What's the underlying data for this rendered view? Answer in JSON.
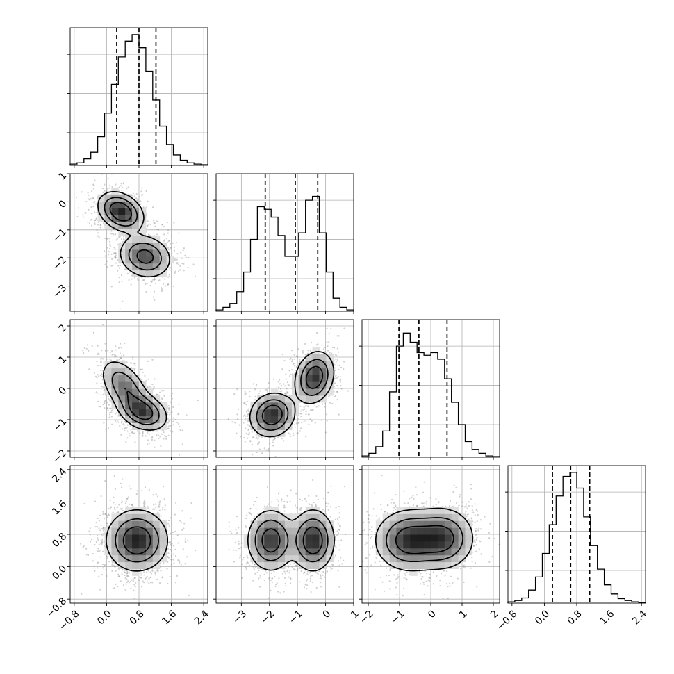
{
  "chart_data": {
    "type": "corner",
    "params": [
      {
        "range": [
          -0.9,
          2.5
        ],
        "ticks": [
          "-0.8",
          "0.0",
          "0.8",
          "1.6",
          "2.4"
        ],
        "quantiles": [
          0.25,
          0.8,
          1.22
        ],
        "hist": [
          0.01,
          0.02,
          0.05,
          0.1,
          0.22,
          0.4,
          0.62,
          0.83,
          0.95,
          1.0,
          0.9,
          0.72,
          0.5,
          0.3,
          0.16,
          0.08,
          0.04,
          0.02,
          0.01,
          0.005
        ]
      },
      {
        "range": [
          -3.9,
          1.0
        ],
        "ticks": [
          "-3",
          "-2",
          "-1",
          "0",
          "1"
        ],
        "quantiles": [
          -2.15,
          -1.08,
          -0.28
        ],
        "hist": [
          0.01,
          0.03,
          0.06,
          0.15,
          0.3,
          0.55,
          0.8,
          0.78,
          0.72,
          0.58,
          0.42,
          0.42,
          0.6,
          0.85,
          0.88,
          0.6,
          0.3,
          0.1,
          0.03,
          0.01
        ]
      },
      {
        "range": [
          -2.2,
          2.2
        ],
        "ticks": [
          "-2",
          "-1",
          "0",
          "1",
          "2"
        ],
        "quantiles": [
          -1.02,
          -0.38,
          0.52
        ],
        "hist": [
          0.01,
          0.03,
          0.08,
          0.2,
          0.5,
          0.85,
          0.95,
          0.88,
          0.8,
          0.78,
          0.8,
          0.75,
          0.6,
          0.42,
          0.25,
          0.12,
          0.06,
          0.03,
          0.01,
          0.005
        ]
      },
      {
        "range": [
          -0.9,
          2.5
        ],
        "ticks": [
          "-0.8",
          "0.0",
          "0.8",
          "1.6",
          "2.4"
        ],
        "quantiles": [
          0.2,
          0.65,
          1.12
        ],
        "hist": [
          0.01,
          0.02,
          0.04,
          0.1,
          0.2,
          0.38,
          0.6,
          0.82,
          0.97,
          1.0,
          0.88,
          0.66,
          0.44,
          0.26,
          0.14,
          0.07,
          0.035,
          0.02,
          0.01,
          0.005
        ]
      }
    ],
    "correlations": [
      {
        "xi": 0,
        "yi": 1,
        "clusters": [
          {
            "mx": 0.35,
            "my": -0.35,
            "sx": 0.28,
            "sy": 0.35,
            "rho": -0.3,
            "w": 0.5
          },
          {
            "mx": 0.95,
            "my": -1.95,
            "sx": 0.32,
            "sy": 0.38,
            "rho": -0.15,
            "w": 0.5
          }
        ]
      },
      {
        "xi": 0,
        "yi": 2,
        "clusters": [
          {
            "mx": 0.45,
            "my": 0.05,
            "sx": 0.3,
            "sy": 0.45,
            "rho": -0.5,
            "w": 0.5
          },
          {
            "mx": 0.9,
            "my": -0.75,
            "sx": 0.3,
            "sy": 0.3,
            "rho": -0.3,
            "w": 0.5
          }
        ]
      },
      {
        "xi": 1,
        "yi": 2,
        "clusters": [
          {
            "mx": -1.9,
            "my": -0.85,
            "sx": 0.4,
            "sy": 0.35,
            "rho": 0.1,
            "w": 0.5
          },
          {
            "mx": -0.4,
            "my": 0.35,
            "sx": 0.35,
            "sy": 0.42,
            "rho": 0.2,
            "w": 0.5
          }
        ]
      },
      {
        "xi": 0,
        "yi": 3,
        "clusters": [
          {
            "mx": 0.75,
            "my": 0.65,
            "sx": 0.38,
            "sy": 0.38,
            "rho": 0.0,
            "w": 1.0
          }
        ]
      },
      {
        "xi": 1,
        "yi": 3,
        "clusters": [
          {
            "mx": -1.95,
            "my": 0.65,
            "sx": 0.42,
            "sy": 0.38,
            "rho": 0.0,
            "w": 0.5
          },
          {
            "mx": -0.45,
            "my": 0.65,
            "sx": 0.38,
            "sy": 0.38,
            "rho": 0.0,
            "w": 0.5
          }
        ]
      },
      {
        "xi": 2,
        "yi": 3,
        "clusters": [
          {
            "mx": -0.7,
            "my": 0.65,
            "sx": 0.55,
            "sy": 0.38,
            "rho": 0.0,
            "w": 0.55
          },
          {
            "mx": 0.4,
            "my": 0.7,
            "sx": 0.5,
            "sy": 0.38,
            "rho": 0.0,
            "w": 0.45
          }
        ]
      }
    ],
    "grid": true,
    "colors": {
      "scatter": "#888888",
      "line": "#000000",
      "grid": "#b0b0b0"
    }
  }
}
